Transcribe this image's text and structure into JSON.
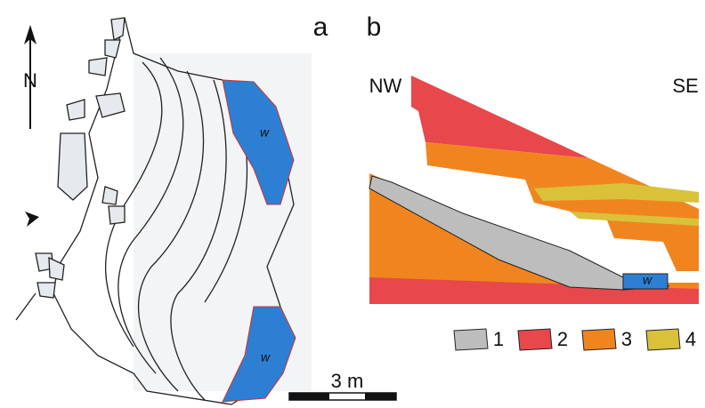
{
  "panel_a": {
    "label": "a",
    "north": "N",
    "water_labels": [
      "w",
      "w"
    ],
    "scale_bar": "3 m"
  },
  "panel_b": {
    "label": "b",
    "left": "NW",
    "right": "SE",
    "water_label": "w",
    "legend": [
      {
        "label": "1",
        "color": "#bdbdbd"
      },
      {
        "label": "2",
        "color": "#e8474b"
      },
      {
        "label": "3",
        "color": "#f0851f"
      },
      {
        "label": "4",
        "color": "#d9c23a"
      }
    ]
  }
}
